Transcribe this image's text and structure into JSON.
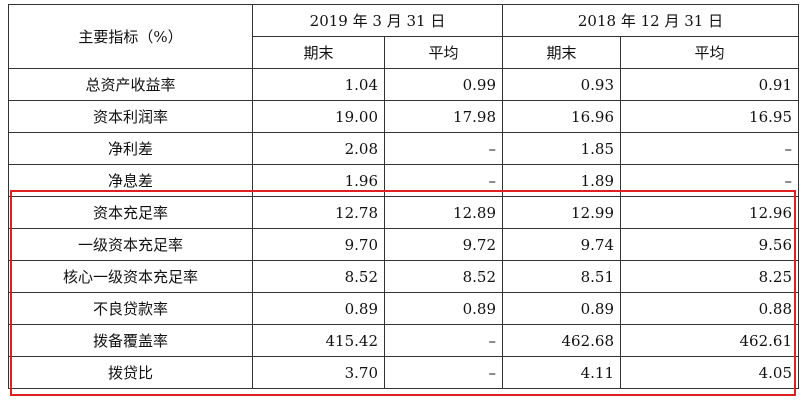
{
  "table": {
    "corner_header": "主要指标（%）",
    "periods": [
      "2019 年 3 月 31 日",
      "2018 年 12 月 31 日"
    ],
    "subheaders": [
      "期末",
      "平均",
      "期末",
      "平均"
    ],
    "rows": [
      {
        "label": "总资产收益率",
        "values": [
          "1.04",
          "0.99",
          "0.93",
          "0.91"
        ]
      },
      {
        "label": "资本利润率",
        "values": [
          "19.00",
          "17.98",
          "16.96",
          "16.95"
        ]
      },
      {
        "label": "净利差",
        "values": [
          "2.08",
          "–",
          "1.85",
          "–"
        ]
      },
      {
        "label": "净息差",
        "values": [
          "1.96",
          "–",
          "1.89",
          "–"
        ]
      },
      {
        "label": "资本充足率",
        "values": [
          "12.78",
          "12.89",
          "12.99",
          "12.96"
        ]
      },
      {
        "label": "一级资本充足率",
        "values": [
          "9.70",
          "9.72",
          "9.74",
          "9.56"
        ]
      },
      {
        "label": "核心一级资本充足率",
        "values": [
          "8.52",
          "8.52",
          "8.51",
          "8.25"
        ]
      },
      {
        "label": "不良贷款率",
        "values": [
          "0.89",
          "0.89",
          "0.89",
          "0.88"
        ]
      },
      {
        "label": "拨备覆盖率",
        "values": [
          "415.42",
          "–",
          "462.68",
          "462.61"
        ]
      },
      {
        "label": "拨贷比",
        "values": [
          "3.70",
          "–",
          "4.11",
          "4.05"
        ]
      }
    ]
  },
  "highlight_color": "#e02020"
}
